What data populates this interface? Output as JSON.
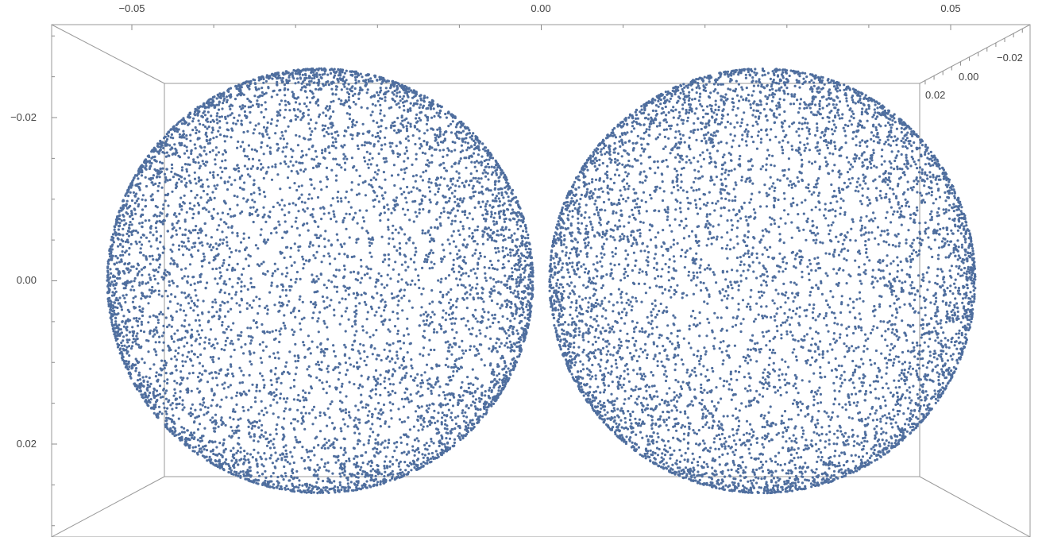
{
  "chart_data": {
    "type": "scatter",
    "dimension": "3d",
    "title": "",
    "xlabel": "",
    "ylabel": "",
    "zlabel": "",
    "x_ticks": [
      "−0.05",
      "0.00",
      "0.05"
    ],
    "y_ticks": [
      "−0.02",
      "0.00",
      "0.02"
    ],
    "z_ticks": [
      "−0.02",
      "0.00",
      "0.02"
    ],
    "xlim": [
      -0.06,
      0.06
    ],
    "ylim": [
      -0.03,
      0.03
    ],
    "y_axis_inverted": true,
    "point_color": "#4f6e9e",
    "series": [
      {
        "shape": "sphere",
        "center": [
          -0.027,
          0.0,
          0.0
        ],
        "radius": 0.026,
        "approx_point_count": 26000
      },
      {
        "shape": "sphere",
        "center": [
          0.027,
          0.0,
          0.0
        ],
        "radius": 0.026,
        "approx_point_count": 26000
      }
    ]
  }
}
